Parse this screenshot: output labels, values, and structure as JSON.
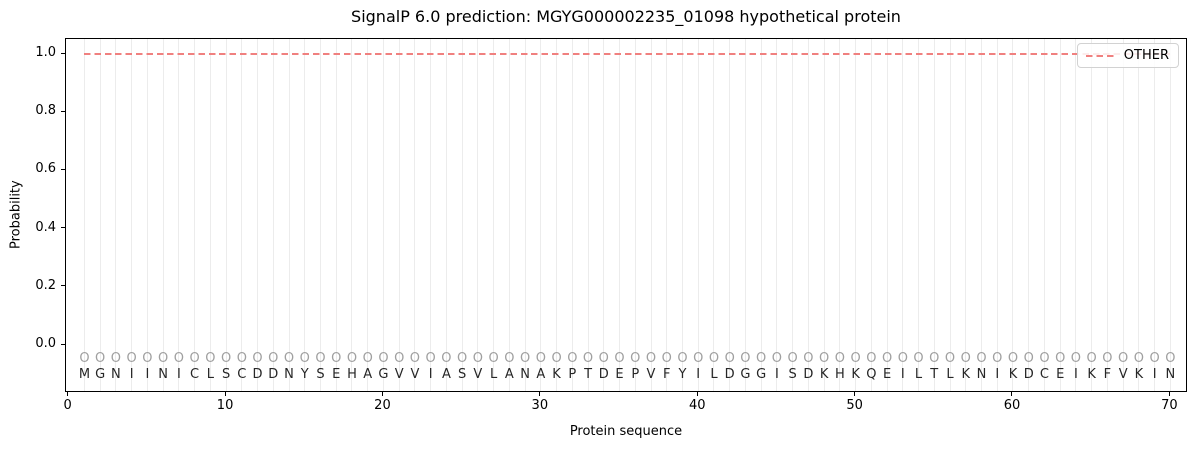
{
  "chart_data": {
    "type": "line",
    "title": "SignalP 6.0 prediction: MGYG000002235_01098 hypothetical protein",
    "xlabel": "Protein sequence",
    "ylabel": "Probability",
    "xticks": [
      0,
      10,
      20,
      30,
      40,
      50,
      60,
      70
    ],
    "yticks": [
      0.0,
      0.2,
      0.4,
      0.6,
      0.8,
      1.0
    ],
    "xlim": [
      -0.2,
      71.2
    ],
    "ylim": [
      -0.17,
      1.05
    ],
    "grid": {
      "vertical_per_residue": true,
      "horizontal": false
    },
    "legend": {
      "position": "upper-right",
      "entries": [
        {
          "label": "OTHER",
          "color": "#f0807f",
          "linestyle": "dashed"
        }
      ]
    },
    "series": [
      {
        "name": "OTHER",
        "color": "#f0807f",
        "linestyle": "dashed",
        "x_start": 1,
        "x_end": 70,
        "values": [
          1.0,
          1.0,
          1.0,
          1.0,
          1.0,
          1.0,
          1.0,
          1.0,
          1.0,
          1.0,
          1.0,
          1.0,
          1.0,
          1.0,
          1.0,
          1.0,
          1.0,
          1.0,
          1.0,
          1.0,
          1.0,
          1.0,
          1.0,
          1.0,
          1.0,
          1.0,
          1.0,
          1.0,
          1.0,
          1.0,
          1.0,
          1.0,
          1.0,
          1.0,
          1.0,
          1.0,
          1.0,
          1.0,
          1.0,
          1.0,
          1.0,
          1.0,
          1.0,
          1.0,
          1.0,
          1.0,
          1.0,
          1.0,
          1.0,
          1.0,
          1.0,
          1.0,
          1.0,
          1.0,
          1.0,
          1.0,
          1.0,
          1.0,
          1.0,
          1.0,
          1.0,
          1.0,
          1.0,
          1.0,
          1.0,
          1.0,
          1.0,
          1.0,
          1.0,
          1.0
        ]
      }
    ],
    "sequence": "MGNIINICLSCDDNYSEHAGVVIASVLANAKPTDEPVFYILDGGISDKHKQEILTLKNIKDCEIKFVKIN",
    "position_tags": "OOOOOOOOOOOOOOOOOOOOOOOOOOOOOOOOOOOOOOOOOOOOOOOOOOOOOOOOOOOOOOOOOOOOOO",
    "colors": {
      "other_line": "#f0807f",
      "grid": "#ececec",
      "sequence_text": "#262626",
      "tag_text": "#a0a0a0",
      "frame": "#000000"
    }
  }
}
